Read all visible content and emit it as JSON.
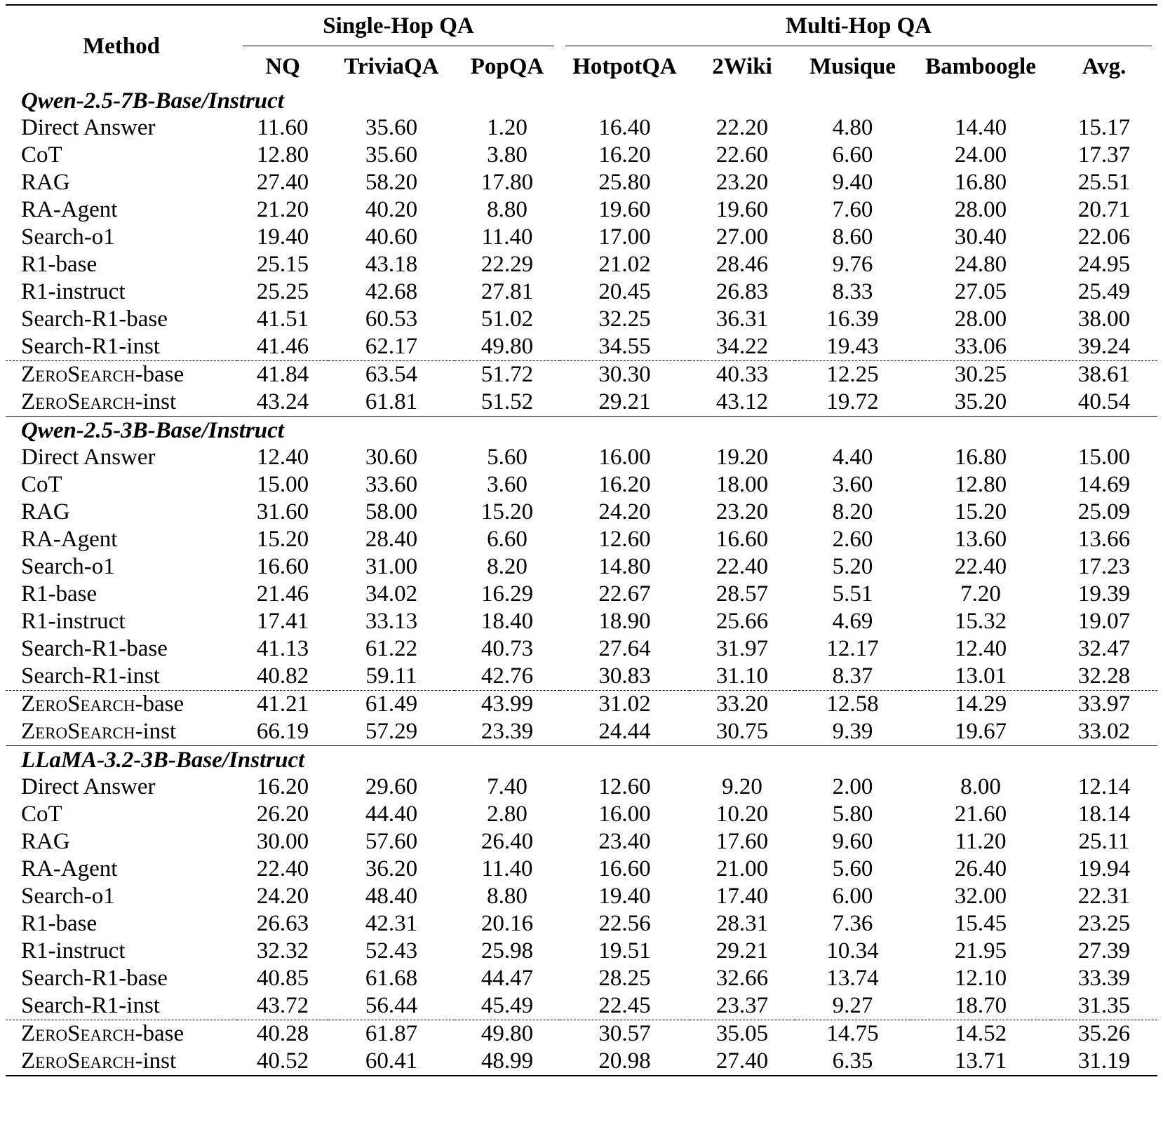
{
  "header": {
    "method": "Method",
    "group_single": "Single-Hop QA",
    "group_multi": "Multi-Hop QA",
    "columns": [
      "NQ",
      "TriviaQA",
      "PopQA",
      "HotpotQA",
      "2Wiki",
      "Musique",
      "Bamboogle",
      "Avg."
    ]
  },
  "sections": [
    {
      "title": "Qwen-2.5-7B-Base/Instruct",
      "rows": [
        {
          "name": "Direct Answer",
          "values": [
            "11.60",
            "35.60",
            "1.20",
            "16.40",
            "22.20",
            "4.80",
            "14.40",
            "15.17"
          ]
        },
        {
          "name": "CoT",
          "values": [
            "12.80",
            "35.60",
            "3.80",
            "16.20",
            "22.60",
            "6.60",
            "24.00",
            "17.37"
          ]
        },
        {
          "name": "RAG",
          "values": [
            "27.40",
            "58.20",
            "17.80",
            "25.80",
            "23.20",
            "9.40",
            "16.80",
            "25.51"
          ]
        },
        {
          "name": "RA-Agent",
          "values": [
            "21.20",
            "40.20",
            "8.80",
            "19.60",
            "19.60",
            "7.60",
            "28.00",
            "20.71"
          ]
        },
        {
          "name": "Search-o1",
          "values": [
            "19.40",
            "40.60",
            "11.40",
            "17.00",
            "27.00",
            "8.60",
            "30.40",
            "22.06"
          ]
        },
        {
          "name": "R1-base",
          "values": [
            "25.15",
            "43.18",
            "22.29",
            "21.02",
            "28.46",
            "9.76",
            "24.80",
            "24.95"
          ]
        },
        {
          "name": "R1-instruct",
          "values": [
            "25.25",
            "42.68",
            "27.81",
            "20.45",
            "26.83",
            "8.33",
            "27.05",
            "25.49"
          ]
        },
        {
          "name": "Search-R1-base",
          "values": [
            "41.51",
            "60.53",
            "51.02",
            "32.25",
            "36.31",
            "16.39",
            "28.00",
            "38.00"
          ]
        },
        {
          "name": "Search-R1-inst",
          "values": [
            "41.46",
            "62.17",
            "49.80",
            "34.55",
            "34.22",
            "19.43",
            "33.06",
            "39.24"
          ]
        },
        {
          "name": "ZeroSearch-base",
          "values": [
            "41.84",
            "63.54",
            "51.72",
            "30.30",
            "40.33",
            "12.25",
            "30.25",
            "38.61"
          ]
        },
        {
          "name": "ZeroSearch-inst",
          "values": [
            "43.24",
            "61.81",
            "51.52",
            "29.21",
            "43.12",
            "19.72",
            "35.20",
            "40.54"
          ]
        }
      ]
    },
    {
      "title": "Qwen-2.5-3B-Base/Instruct",
      "rows": [
        {
          "name": "Direct Answer",
          "values": [
            "12.40",
            "30.60",
            "5.60",
            "16.00",
            "19.20",
            "4.40",
            "16.80",
            "15.00"
          ]
        },
        {
          "name": "CoT",
          "values": [
            "15.00",
            "33.60",
            "3.60",
            "16.20",
            "18.00",
            "3.60",
            "12.80",
            "14.69"
          ]
        },
        {
          "name": "RAG",
          "values": [
            "31.60",
            "58.00",
            "15.20",
            "24.20",
            "23.20",
            "8.20",
            "15.20",
            "25.09"
          ]
        },
        {
          "name": "RA-Agent",
          "values": [
            "15.20",
            "28.40",
            "6.60",
            "12.60",
            "16.60",
            "2.60",
            "13.60",
            "13.66"
          ]
        },
        {
          "name": "Search-o1",
          "values": [
            "16.60",
            "31.00",
            "8.20",
            "14.80",
            "22.40",
            "5.20",
            "22.40",
            "17.23"
          ]
        },
        {
          "name": "R1-base",
          "values": [
            "21.46",
            "34.02",
            "16.29",
            "22.67",
            "28.57",
            "5.51",
            "7.20",
            "19.39"
          ]
        },
        {
          "name": "R1-instruct",
          "values": [
            "17.41",
            "33.13",
            "18.40",
            "18.90",
            "25.66",
            "4.69",
            "15.32",
            "19.07"
          ]
        },
        {
          "name": "Search-R1-base",
          "values": [
            "41.13",
            "61.22",
            "40.73",
            "27.64",
            "31.97",
            "12.17",
            "12.40",
            "32.47"
          ]
        },
        {
          "name": "Search-R1-inst",
          "values": [
            "40.82",
            "59.11",
            "42.76",
            "30.83",
            "31.10",
            "8.37",
            "13.01",
            "32.28"
          ]
        },
        {
          "name": "ZeroSearch-base",
          "values": [
            "41.21",
            "61.49",
            "43.99",
            "31.02",
            "33.20",
            "12.58",
            "14.29",
            "33.97"
          ]
        },
        {
          "name": "ZeroSearch-inst",
          "values": [
            "66.19",
            "57.29",
            "23.39",
            "24.44",
            "30.75",
            "9.39",
            "19.67",
            "33.02"
          ]
        }
      ]
    },
    {
      "title": "LLaMA-3.2-3B-Base/Instruct",
      "rows": [
        {
          "name": "Direct Answer",
          "values": [
            "16.20",
            "29.60",
            "7.40",
            "12.60",
            "9.20",
            "2.00",
            "8.00",
            "12.14"
          ]
        },
        {
          "name": "CoT",
          "values": [
            "26.20",
            "44.40",
            "2.80",
            "16.00",
            "10.20",
            "5.80",
            "21.60",
            "18.14"
          ]
        },
        {
          "name": "RAG",
          "values": [
            "30.00",
            "57.60",
            "26.40",
            "23.40",
            "17.60",
            "9.60",
            "11.20",
            "25.11"
          ]
        },
        {
          "name": "RA-Agent",
          "values": [
            "22.40",
            "36.20",
            "11.40",
            "16.60",
            "21.00",
            "5.60",
            "26.40",
            "19.94"
          ]
        },
        {
          "name": "Search-o1",
          "values": [
            "24.20",
            "48.40",
            "8.80",
            "19.40",
            "17.40",
            "6.00",
            "32.00",
            "22.31"
          ]
        },
        {
          "name": "R1-base",
          "values": [
            "26.63",
            "42.31",
            "20.16",
            "22.56",
            "28.31",
            "7.36",
            "15.45",
            "23.25"
          ]
        },
        {
          "name": "R1-instruct",
          "values": [
            "32.32",
            "52.43",
            "25.98",
            "19.51",
            "29.21",
            "10.34",
            "21.95",
            "27.39"
          ]
        },
        {
          "name": "Search-R1-base",
          "values": [
            "40.85",
            "61.68",
            "44.47",
            "28.25",
            "32.66",
            "13.74",
            "12.10",
            "33.39"
          ]
        },
        {
          "name": "Search-R1-inst",
          "values": [
            "43.72",
            "56.44",
            "45.49",
            "22.45",
            "23.37",
            "9.27",
            "18.70",
            "31.35"
          ]
        },
        {
          "name": "ZeroSearch-base",
          "values": [
            "40.28",
            "61.87",
            "49.80",
            "30.57",
            "35.05",
            "14.75",
            "14.52",
            "35.26"
          ]
        },
        {
          "name": "ZeroSearch-inst",
          "values": [
            "40.52",
            "60.41",
            "48.99",
            "20.98",
            "27.40",
            "6.35",
            "13.71",
            "31.19"
          ]
        }
      ]
    }
  ]
}
